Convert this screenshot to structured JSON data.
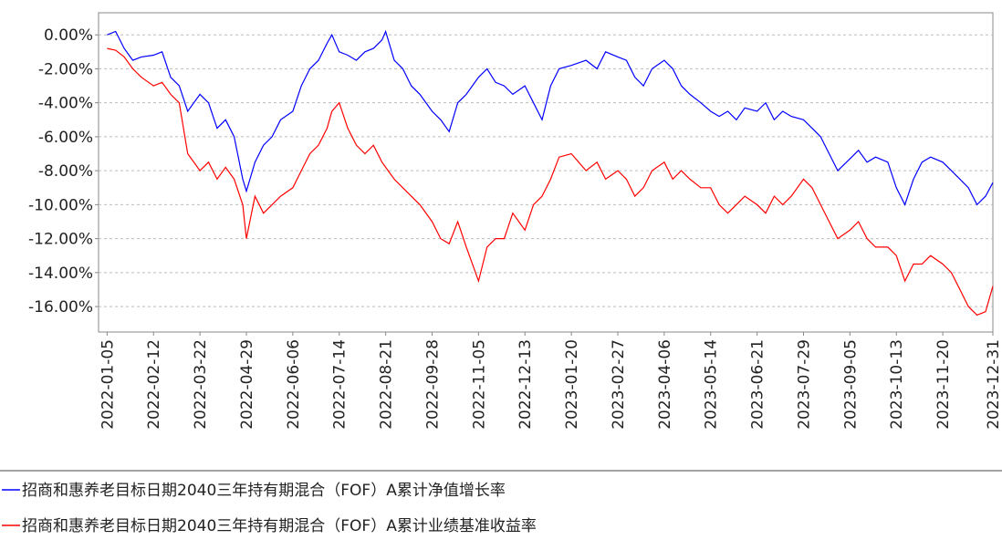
{
  "chart_data": {
    "type": "line",
    "x": [
      "2022-01-05",
      "2022-01-12",
      "2022-01-19",
      "2022-01-26",
      "2022-02-02",
      "2022-02-12",
      "2022-02-19",
      "2022-02-26",
      "2022-03-05",
      "2022-03-12",
      "2022-03-22",
      "2022-03-29",
      "2022-04-05",
      "2022-04-12",
      "2022-04-19",
      "2022-04-26",
      "2022-04-29",
      "2022-05-06",
      "2022-05-13",
      "2022-05-20",
      "2022-05-27",
      "2022-06-06",
      "2022-06-13",
      "2022-06-20",
      "2022-06-27",
      "2022-07-04",
      "2022-07-08",
      "2022-07-14",
      "2022-07-21",
      "2022-07-28",
      "2022-08-04",
      "2022-08-11",
      "2022-08-18",
      "2022-08-21",
      "2022-08-28",
      "2022-09-04",
      "2022-09-11",
      "2022-09-18",
      "2022-09-28",
      "2022-10-05",
      "2022-10-12",
      "2022-10-19",
      "2022-10-26",
      "2022-11-05",
      "2022-11-12",
      "2022-11-19",
      "2022-11-26",
      "2022-12-03",
      "2022-12-13",
      "2022-12-20",
      "2022-12-27",
      "2023-01-03",
      "2023-01-10",
      "2023-01-20",
      "2023-02-01",
      "2023-02-10",
      "2023-02-17",
      "2023-02-27",
      "2023-03-06",
      "2023-03-13",
      "2023-03-20",
      "2023-03-27",
      "2023-04-06",
      "2023-04-13",
      "2023-04-20",
      "2023-04-27",
      "2023-05-06",
      "2023-05-14",
      "2023-05-21",
      "2023-05-28",
      "2023-06-04",
      "2023-06-11",
      "2023-06-21",
      "2023-06-28",
      "2023-07-05",
      "2023-07-12",
      "2023-07-19",
      "2023-07-29",
      "2023-08-05",
      "2023-08-12",
      "2023-08-19",
      "2023-08-26",
      "2023-09-05",
      "2023-09-12",
      "2023-09-19",
      "2023-09-26",
      "2023-10-06",
      "2023-10-13",
      "2023-10-20",
      "2023-10-27",
      "2023-11-03",
      "2023-11-10",
      "2023-11-20",
      "2023-11-27",
      "2023-12-04",
      "2023-12-11",
      "2023-12-18",
      "2023-12-25",
      "2023-12-31"
    ],
    "series": [
      {
        "name": "招商和惠养老目标日期2040三年持有期混合（FOF）A累计净值增长率",
        "color": "#0000ff",
        "values": [
          0.0,
          0.2,
          -0.8,
          -1.5,
          -1.3,
          -1.2,
          -1.0,
          -2.5,
          -3.0,
          -4.5,
          -3.5,
          -4.0,
          -5.5,
          -5.0,
          -6.0,
          -8.5,
          -9.2,
          -7.5,
          -6.5,
          -6.0,
          -5.0,
          -4.5,
          -3.0,
          -2.0,
          -1.5,
          -0.5,
          0.0,
          -1.0,
          -1.2,
          -1.5,
          -1.0,
          -0.8,
          -0.3,
          0.2,
          -1.5,
          -2.0,
          -3.0,
          -3.5,
          -4.5,
          -5.0,
          -5.7,
          -4.0,
          -3.5,
          -2.5,
          -2.0,
          -2.8,
          -3.0,
          -3.5,
          -3.0,
          -4.0,
          -5.0,
          -3.0,
          -2.0,
          -1.8,
          -1.5,
          -2.0,
          -1.0,
          -1.3,
          -1.5,
          -2.5,
          -3.0,
          -2.0,
          -1.5,
          -2.0,
          -3.0,
          -3.5,
          -4.0,
          -4.5,
          -4.8,
          -4.5,
          -5.0,
          -4.3,
          -4.5,
          -4.0,
          -5.0,
          -4.5,
          -4.8,
          -5.0,
          -5.5,
          -6.0,
          -7.0,
          -8.0,
          -7.3,
          -6.8,
          -7.5,
          -7.2,
          -7.5,
          -9.0,
          -10.0,
          -8.5,
          -7.5,
          -7.2,
          -7.5,
          -8.0,
          -8.5,
          -9.0,
          -10.0,
          -9.5,
          -8.7
        ]
      },
      {
        "name": "招商和惠养老目标日期2040三年持有期混合（FOF）A累计业绩基准收益率",
        "color": "#ff0000",
        "values": [
          -0.8,
          -0.9,
          -1.3,
          -2.0,
          -2.5,
          -3.0,
          -2.8,
          -3.5,
          -4.0,
          -7.0,
          -8.0,
          -7.5,
          -8.5,
          -7.8,
          -8.5,
          -10.0,
          -12.0,
          -9.5,
          -10.5,
          -10.0,
          -9.5,
          -9.0,
          -8.0,
          -7.0,
          -6.5,
          -5.5,
          -4.5,
          -4.0,
          -5.5,
          -6.5,
          -7.0,
          -6.5,
          -7.5,
          -7.8,
          -8.5,
          -9.0,
          -9.5,
          -10.0,
          -11.0,
          -12.0,
          -12.3,
          -11.0,
          -12.5,
          -14.5,
          -12.5,
          -12.0,
          -12.0,
          -10.5,
          -11.5,
          -10.0,
          -9.5,
          -8.5,
          -7.2,
          -7.0,
          -8.0,
          -7.5,
          -8.5,
          -8.0,
          -8.5,
          -9.5,
          -9.0,
          -8.0,
          -7.5,
          -8.5,
          -8.0,
          -8.5,
          -9.0,
          -9.0,
          -10.0,
          -10.5,
          -10.0,
          -9.5,
          -10.0,
          -10.5,
          -9.5,
          -10.0,
          -9.5,
          -8.5,
          -9.0,
          -10.0,
          -11.0,
          -12.0,
          -11.5,
          -11.0,
          -12.0,
          -12.5,
          -12.5,
          -13.0,
          -14.5,
          -13.5,
          -13.5,
          -13.0,
          -13.5,
          -14.0,
          -15.0,
          -16.0,
          -16.5,
          -16.3,
          -14.8
        ]
      }
    ],
    "xlim": [
      "2021-12-29",
      "2023-12-31"
    ],
    "xticks": [
      "2022-01-05",
      "2022-02-12",
      "2022-03-22",
      "2022-04-29",
      "2022-06-06",
      "2022-07-14",
      "2022-08-21",
      "2022-09-28",
      "2022-11-05",
      "2022-12-13",
      "2023-01-20",
      "2023-02-27",
      "2023-04-06",
      "2023-05-14",
      "2023-06-21",
      "2023-07-29",
      "2023-09-05",
      "2023-10-13",
      "2023-11-20",
      "2023-12-31"
    ],
    "ylim": [
      -17.5,
      1.3
    ],
    "yticks": [
      {
        "value": 0,
        "label": "0.00%"
      },
      {
        "value": -2,
        "label": "-2.00%"
      },
      {
        "value": -4,
        "label": "-4.00%"
      },
      {
        "value": -6,
        "label": "-6.00%"
      },
      {
        "value": -8,
        "label": "-8.00%"
      },
      {
        "value": -10,
        "label": "-10.00%"
      },
      {
        "value": -12,
        "label": "-12.00%"
      },
      {
        "value": -14,
        "label": "-14.00%"
      },
      {
        "value": -16,
        "label": "-16.00%"
      }
    ],
    "grid": true,
    "legend": "bottom"
  }
}
